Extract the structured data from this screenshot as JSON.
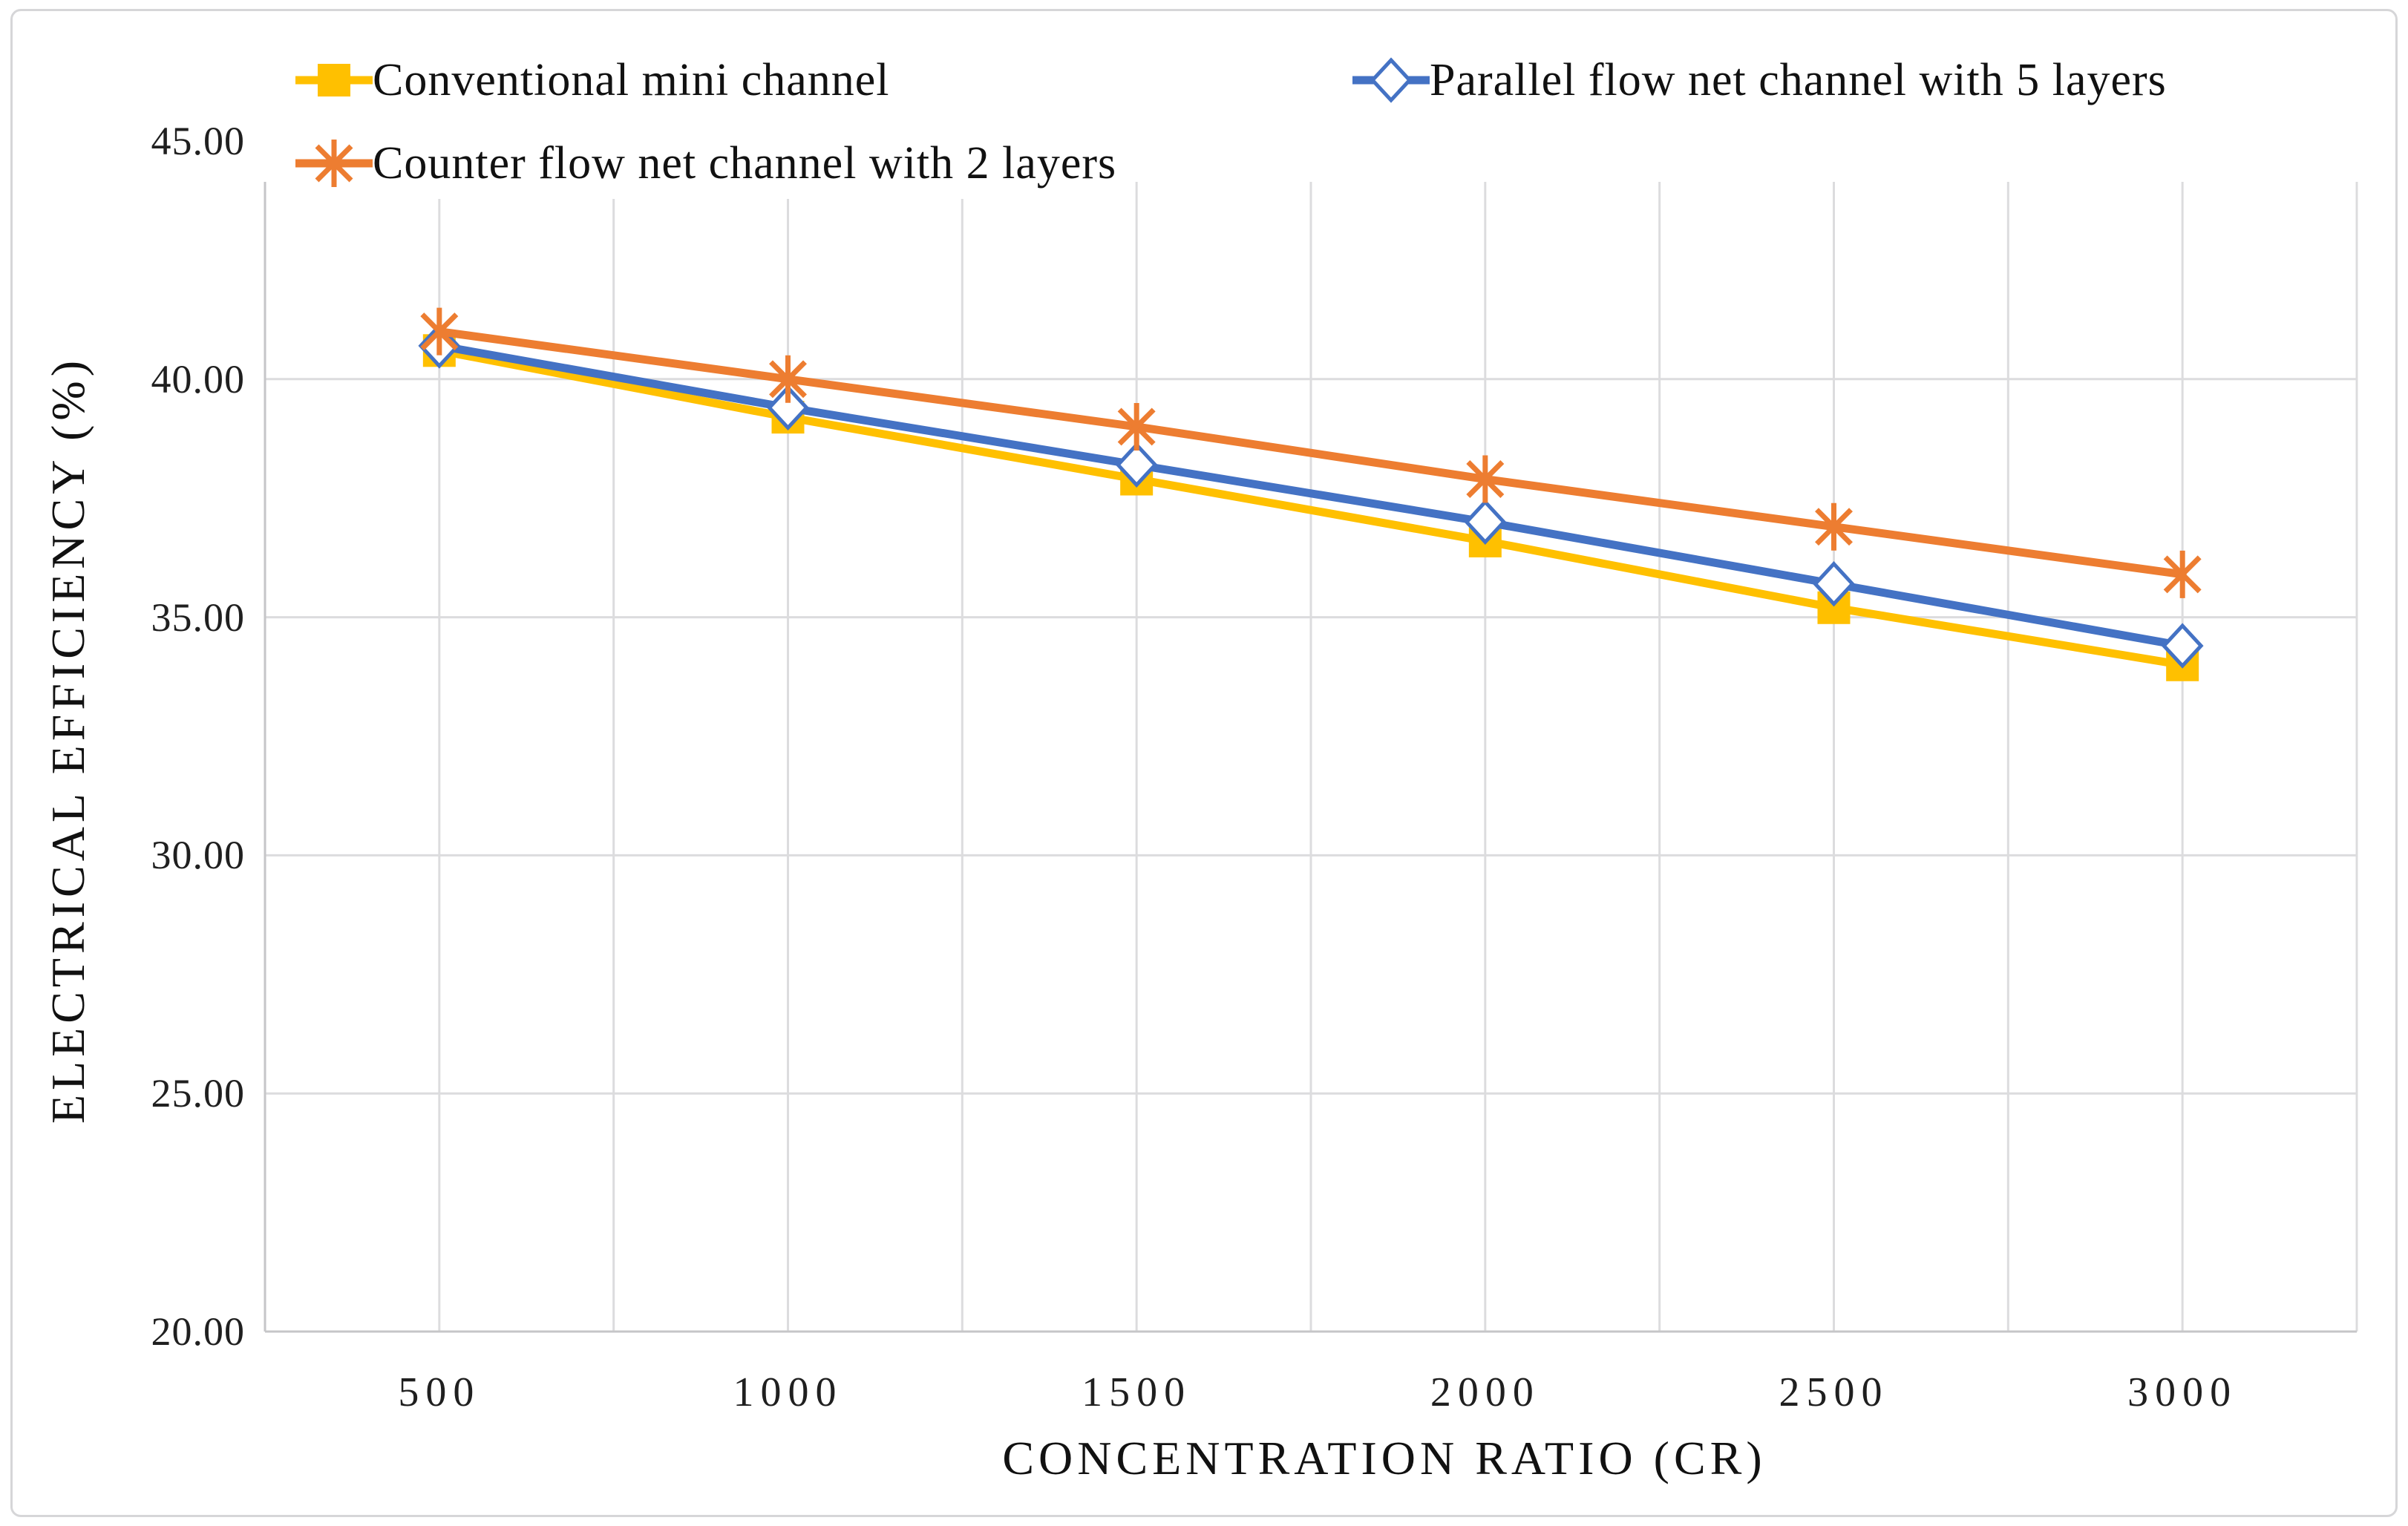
{
  "chart_data": {
    "type": "line",
    "title": "",
    "xlabel": "CONCENTRATION RATIO (CR)",
    "ylabel": "ELECTRICAL EFFICIENCY (%)",
    "x": [
      500,
      1000,
      1500,
      2000,
      2500,
      3000
    ],
    "series": [
      {
        "name": "Conventional mini channel",
        "color": "#FFC000",
        "marker": "square",
        "values": [
          40.6,
          39.2,
          37.9,
          36.6,
          35.2,
          34.0
        ]
      },
      {
        "name": "Parallel flow net channel with 5 layers",
        "color": "#4472C4",
        "marker": "diamond",
        "values": [
          40.7,
          39.4,
          38.2,
          37.0,
          35.7,
          34.4
        ]
      },
      {
        "name": "Counter flow net channel with 2 layers",
        "color": "#ED7D31",
        "marker": "asterisk",
        "values": [
          41.0,
          40.0,
          39.0,
          37.9,
          36.9,
          35.9
        ]
      }
    ],
    "xlim": [
      250,
      3250
    ],
    "ylim": [
      20,
      45
    ],
    "x_gridline_step": 250,
    "y_gridline_step": 5,
    "x_ticks": [
      {
        "value": 500,
        "label": "500"
      },
      {
        "value": 1000,
        "label": "1000"
      },
      {
        "value": 1500,
        "label": "1500"
      },
      {
        "value": 2000,
        "label": "2000"
      },
      {
        "value": 2500,
        "label": "2500"
      },
      {
        "value": 3000,
        "label": "3000"
      }
    ],
    "y_ticks": [
      {
        "value": 45,
        "label": "45.00"
      },
      {
        "value": 40,
        "label": "40.00"
      },
      {
        "value": 35,
        "label": "35.00"
      },
      {
        "value": 30,
        "label": "30.00"
      },
      {
        "value": 25,
        "label": "25.00"
      },
      {
        "value": 20,
        "label": "20.00"
      }
    ],
    "legend_position": "top-overlay",
    "grid": true,
    "colors": {
      "gridline": "#DCDCDE",
      "axis_line": "#C6C6C8",
      "text": "#1f1f1f",
      "background": "#ffffff"
    }
  }
}
